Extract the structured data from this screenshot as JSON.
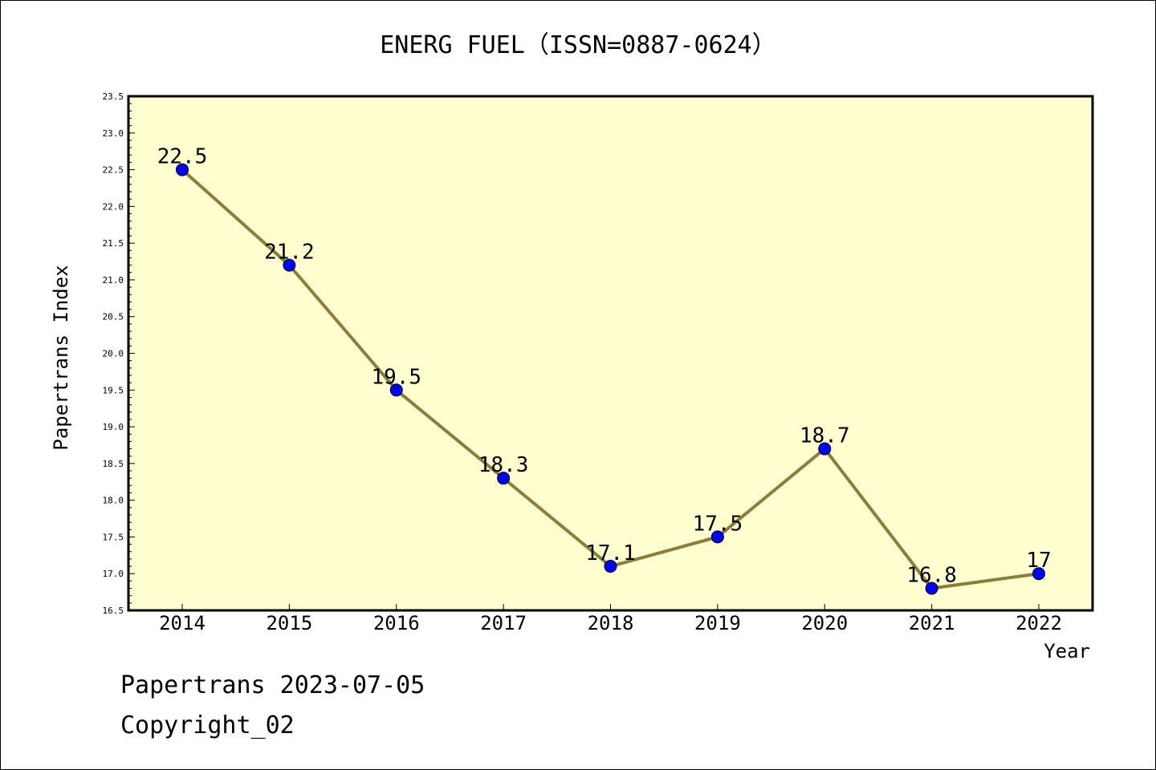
{
  "chart_data": {
    "type": "line",
    "title": "ENERG FUEL（ISSN=0887-0624）",
    "xlabel": "Year",
    "ylabel": "Papertrans Index",
    "categories": [
      "2014",
      "2015",
      "2016",
      "2017",
      "2018",
      "2019",
      "2020",
      "2021",
      "2022"
    ],
    "values": [
      22.5,
      21.2,
      19.5,
      18.3,
      17.1,
      17.5,
      18.7,
      16.8,
      17.0
    ],
    "data_labels": [
      "22.5",
      "21.2",
      "19.5",
      "18.3",
      "17.1",
      "17.5",
      "18.7",
      "16.8",
      "17"
    ],
    "ylim": [
      16.5,
      23.5
    ],
    "yticks": [
      "16.5",
      "17.0",
      "17.5",
      "18.0",
      "18.5",
      "19.0",
      "19.5",
      "20.0",
      "20.5",
      "21.0",
      "21.5",
      "22.0",
      "22.5",
      "23.0",
      "23.5"
    ],
    "grid": false,
    "colors": {
      "plot_background": "#ffffd0",
      "line": "#8b7d3a",
      "marker": "#0000ff"
    }
  },
  "footer": {
    "line1": "Papertrans 2023-07-05",
    "line2": "Copyright_02"
  }
}
